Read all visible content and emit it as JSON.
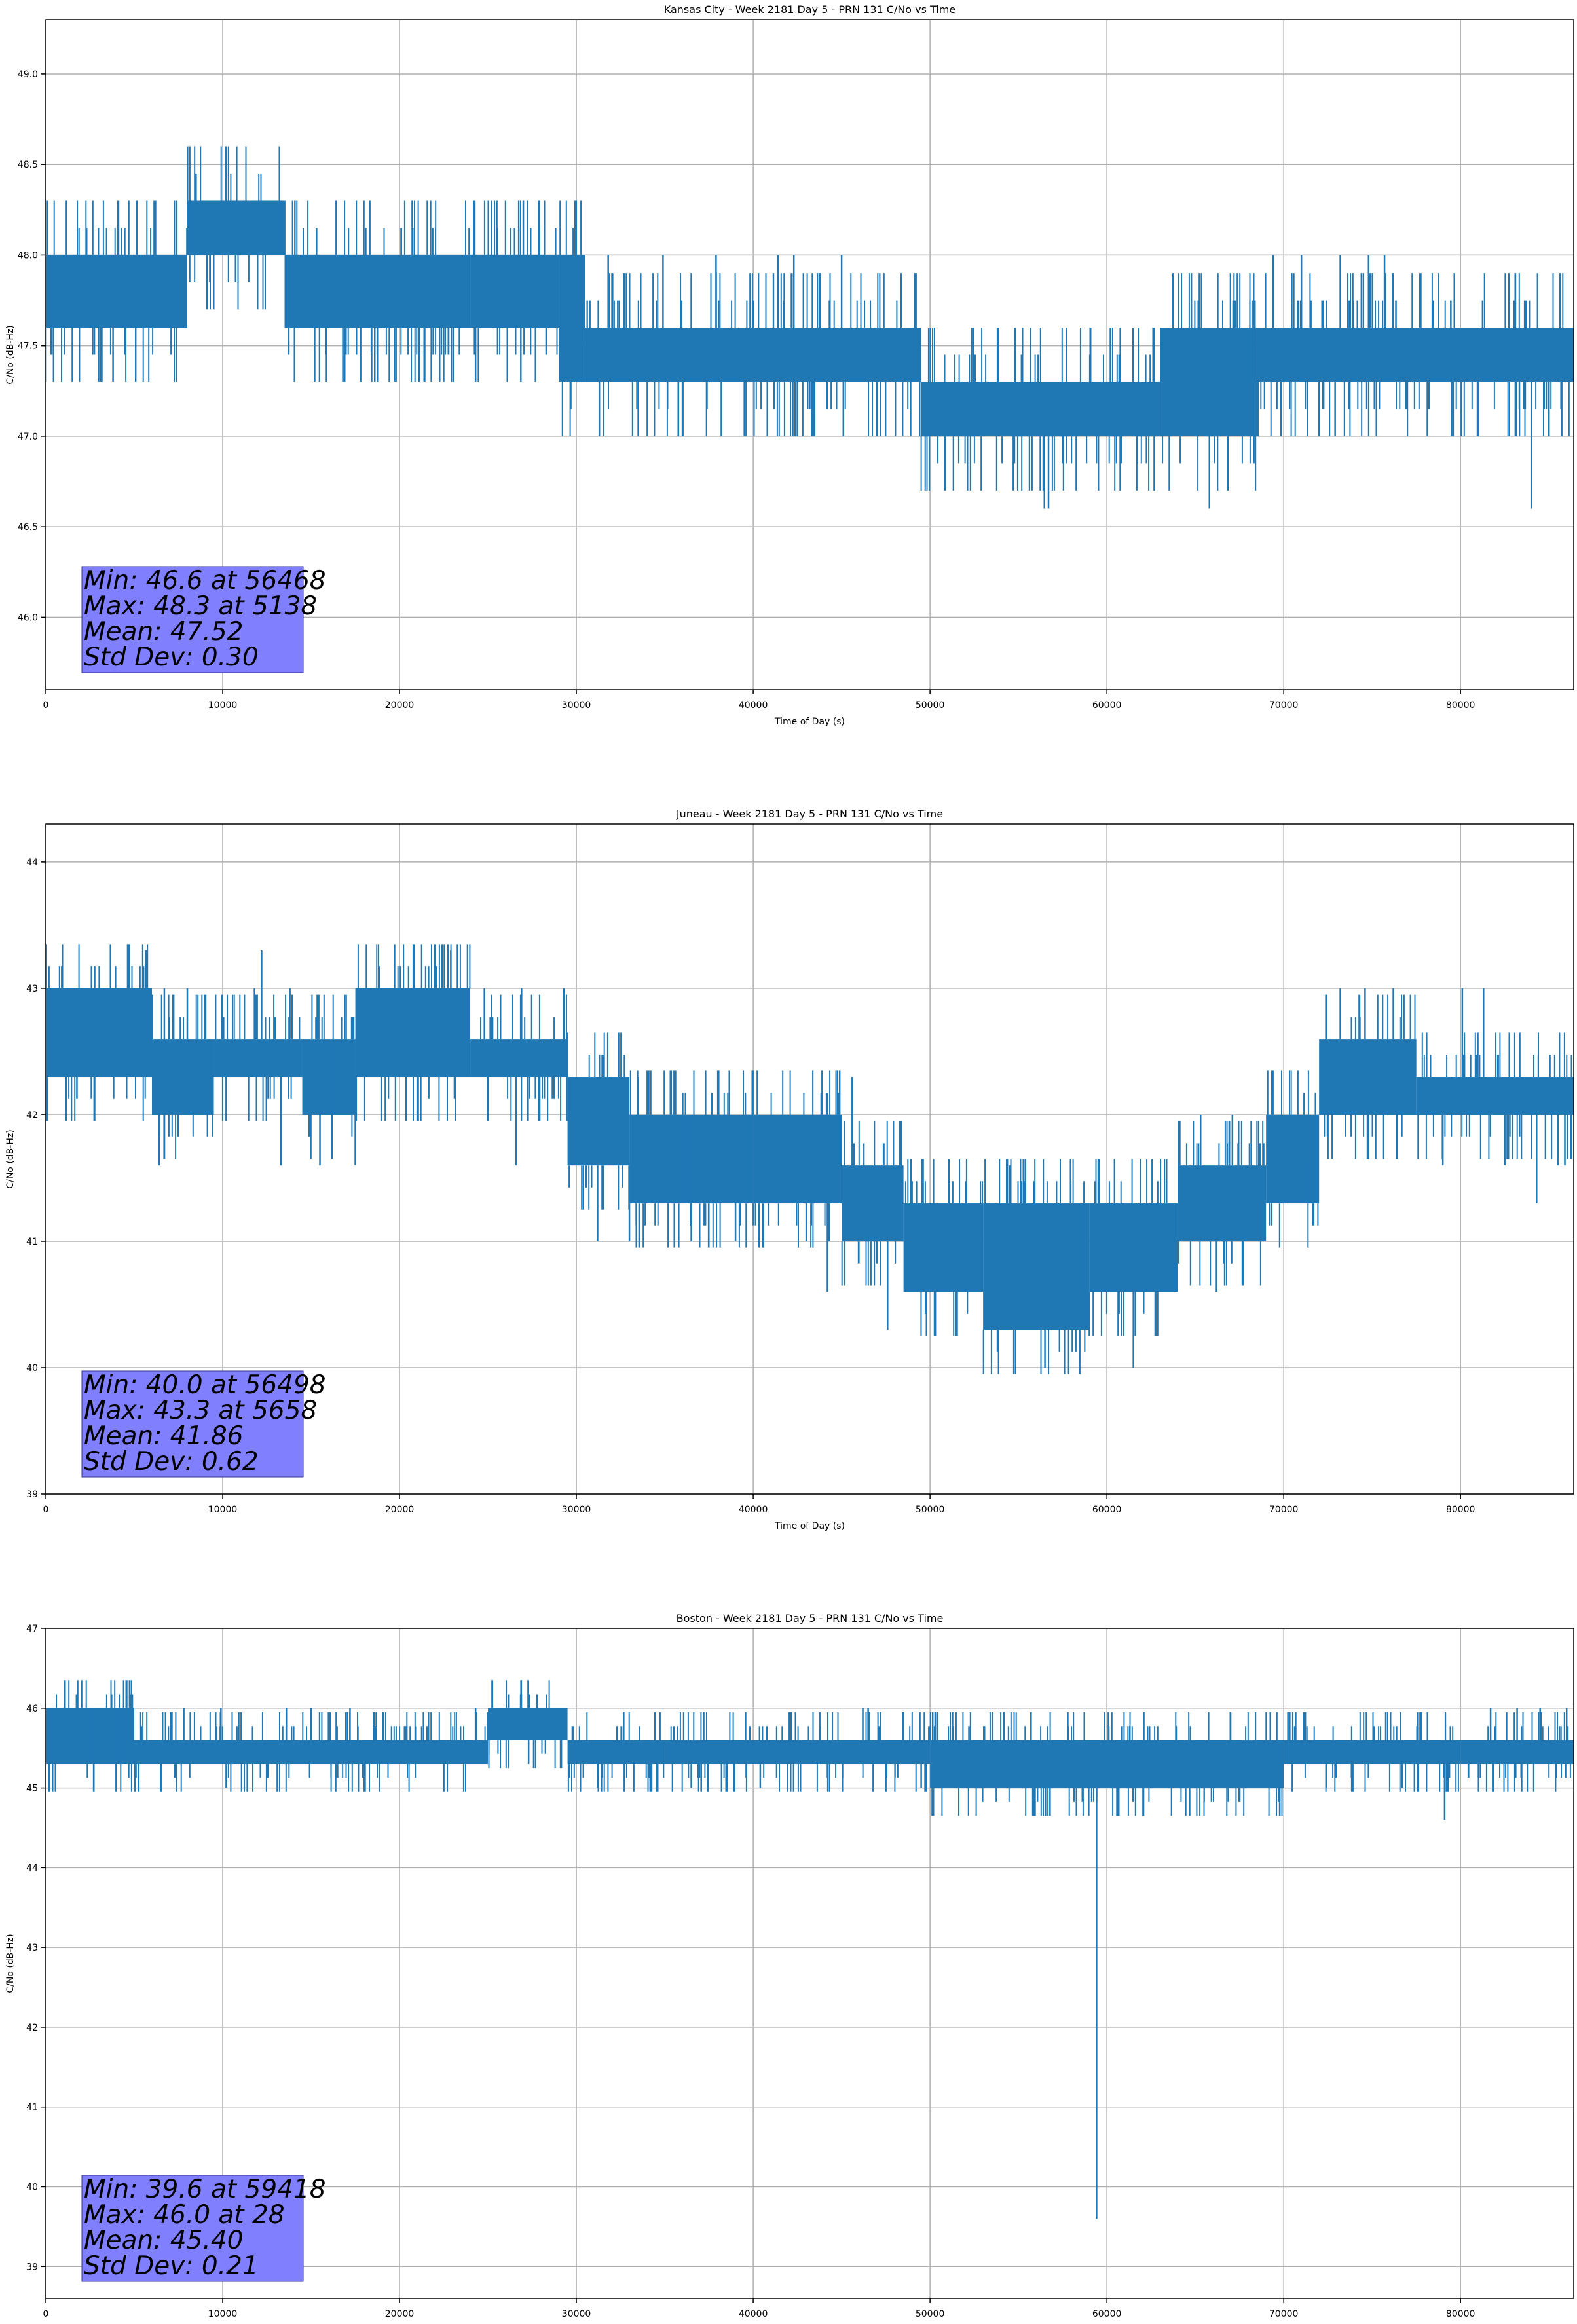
{
  "chart_data": [
    {
      "type": "line",
      "title": "Kansas City - Week 2181 Day 5 - PRN 131 C/No vs Time",
      "xlabel": "Time of Day (s)",
      "ylabel": "C/No (dB-Hz)",
      "xlim": [
        0,
        86400
      ],
      "ylim": [
        45.6,
        49.3
      ],
      "xticks": [
        0,
        10000,
        20000,
        30000,
        40000,
        50000,
        60000,
        70000,
        80000
      ],
      "yticks": [
        46.0,
        46.5,
        47.0,
        47.5,
        48.0,
        48.5,
        49.0
      ],
      "ytick_decimals": 1,
      "grid": true,
      "color": "#1f77b4",
      "envelope": [
        {
          "x0": 0,
          "x1": 8000,
          "hi": 48.0,
          "lo": 47.6
        },
        {
          "x0": 8000,
          "x1": 13500,
          "hi": 48.3,
          "lo": 48.0
        },
        {
          "x0": 13500,
          "x1": 24000,
          "hi": 48.0,
          "lo": 47.6
        },
        {
          "x0": 24000,
          "x1": 29000,
          "hi": 48.0,
          "lo": 47.6
        },
        {
          "x0": 29000,
          "x1": 30500,
          "hi": 48.0,
          "lo": 47.3
        },
        {
          "x0": 30500,
          "x1": 49500,
          "hi": 47.6,
          "lo": 47.3
        },
        {
          "x0": 49500,
          "x1": 63000,
          "hi": 47.3,
          "lo": 47.0
        },
        {
          "x0": 63000,
          "x1": 68500,
          "hi": 47.6,
          "lo": 47.0
        },
        {
          "x0": 68500,
          "x1": 86400,
          "hi": 47.6,
          "lo": 47.3
        }
      ],
      "spikes": [
        {
          "x": 5138,
          "y": 48.3
        },
        {
          "x": 6200,
          "y": 48.3
        },
        {
          "x": 7400,
          "y": 48.3
        },
        {
          "x": 8100,
          "y": 48.3
        },
        {
          "x": 13300,
          "y": 48.3
        },
        {
          "x": 24200,
          "y": 48.3
        },
        {
          "x": 25500,
          "y": 48.3
        },
        {
          "x": 27000,
          "y": 48.3
        },
        {
          "x": 27900,
          "y": 48.3
        },
        {
          "x": 1500,
          "y": 47.3
        },
        {
          "x": 3100,
          "y": 47.3
        },
        {
          "x": 3800,
          "y": 47.3
        },
        {
          "x": 15200,
          "y": 47.3
        },
        {
          "x": 16800,
          "y": 47.3
        },
        {
          "x": 17800,
          "y": 47.3
        },
        {
          "x": 18600,
          "y": 47.3
        },
        {
          "x": 19800,
          "y": 47.3
        },
        {
          "x": 21100,
          "y": 47.3
        },
        {
          "x": 21800,
          "y": 47.3
        },
        {
          "x": 24300,
          "y": 47.3
        },
        {
          "x": 26100,
          "y": 47.3
        },
        {
          "x": 31300,
          "y": 47.0
        },
        {
          "x": 33500,
          "y": 47.0
        },
        {
          "x": 36000,
          "y": 47.0
        },
        {
          "x": 38200,
          "y": 47.0
        },
        {
          "x": 42500,
          "y": 47.0
        },
        {
          "x": 45100,
          "y": 47.0
        },
        {
          "x": 47000,
          "y": 47.0
        },
        {
          "x": 31800,
          "y": 48.0
        },
        {
          "x": 34900,
          "y": 48.0
        },
        {
          "x": 37900,
          "y": 48.0
        },
        {
          "x": 41400,
          "y": 48.0
        },
        {
          "x": 42300,
          "y": 48.0
        },
        {
          "x": 45000,
          "y": 48.0
        },
        {
          "x": 56468,
          "y": 46.6
        },
        {
          "x": 56700,
          "y": 46.6
        },
        {
          "x": 65800,
          "y": 46.6
        },
        {
          "x": 84000,
          "y": 46.6
        },
        {
          "x": 69400,
          "y": 48.0
        },
        {
          "x": 71000,
          "y": 48.0
        },
        {
          "x": 73200,
          "y": 48.0
        },
        {
          "x": 74800,
          "y": 48.0
        },
        {
          "x": 75700,
          "y": 48.0
        },
        {
          "x": 72000,
          "y": 47.0
        },
        {
          "x": 79500,
          "y": 47.0
        },
        {
          "x": 81000,
          "y": 47.0
        },
        {
          "x": 83100,
          "y": 47.0
        },
        {
          "x": 85000,
          "y": 47.0
        },
        {
          "x": 60200,
          "y": 47.6
        },
        {
          "x": 54800,
          "y": 47.6
        }
      ],
      "stats": [
        "Min: 46.6 at 56468",
        "Max: 48.3 at 5138",
        "Mean: 47.52",
        "Std Dev: 0.30"
      ]
    },
    {
      "type": "line",
      "title": "Juneau - Week 2181 Day 5 - PRN 131 C/No vs Time",
      "xlabel": "Time of Day (s)",
      "ylabel": "C/No (dB-Hz)",
      "xlim": [
        0,
        86400
      ],
      "ylim": [
        39.0,
        44.3
      ],
      "xticks": [
        0,
        10000,
        20000,
        30000,
        40000,
        50000,
        60000,
        70000,
        80000
      ],
      "yticks": [
        39,
        40,
        41,
        42,
        43,
        44
      ],
      "ytick_decimals": 0,
      "grid": true,
      "color": "#1f77b4",
      "envelope": [
        {
          "x0": 0,
          "x1": 6000,
          "hi": 43.0,
          "lo": 42.3
        },
        {
          "x0": 6000,
          "x1": 9500,
          "hi": 42.6,
          "lo": 42.0
        },
        {
          "x0": 9500,
          "x1": 14500,
          "hi": 42.6,
          "lo": 42.3
        },
        {
          "x0": 14500,
          "x1": 17500,
          "hi": 42.6,
          "lo": 42.0
        },
        {
          "x0": 17500,
          "x1": 24000,
          "hi": 43.0,
          "lo": 42.3
        },
        {
          "x0": 24000,
          "x1": 29500,
          "hi": 42.6,
          "lo": 42.3
        },
        {
          "x0": 29500,
          "x1": 33000,
          "hi": 42.3,
          "lo": 41.6
        },
        {
          "x0": 33000,
          "x1": 40000,
          "hi": 42.0,
          "lo": 41.3
        },
        {
          "x0": 40000,
          "x1": 45000,
          "hi": 42.0,
          "lo": 41.3
        },
        {
          "x0": 45000,
          "x1": 48500,
          "hi": 41.6,
          "lo": 41.0
        },
        {
          "x0": 48500,
          "x1": 53000,
          "hi": 41.3,
          "lo": 40.6
        },
        {
          "x0": 53000,
          "x1": 59000,
          "hi": 41.3,
          "lo": 40.3
        },
        {
          "x0": 59000,
          "x1": 64000,
          "hi": 41.3,
          "lo": 40.6
        },
        {
          "x0": 64000,
          "x1": 69000,
          "hi": 41.6,
          "lo": 41.0
        },
        {
          "x0": 69000,
          "x1": 72000,
          "hi": 42.0,
          "lo": 41.3
        },
        {
          "x0": 72000,
          "x1": 77500,
          "hi": 42.6,
          "lo": 42.0
        },
        {
          "x0": 77500,
          "x1": 86400,
          "hi": 42.3,
          "lo": 42.0
        }
      ],
      "spikes": [
        {
          "x": 5658,
          "y": 43.3
        },
        {
          "x": 12200,
          "y": 43.3
        },
        {
          "x": 22900,
          "y": 43.3
        },
        {
          "x": 6400,
          "y": 41.6
        },
        {
          "x": 13300,
          "y": 41.6
        },
        {
          "x": 15500,
          "y": 41.6
        },
        {
          "x": 17500,
          "y": 41.6
        },
        {
          "x": 26600,
          "y": 41.6
        },
        {
          "x": 6700,
          "y": 43.0
        },
        {
          "x": 8000,
          "y": 43.0
        },
        {
          "x": 11800,
          "y": 43.0
        },
        {
          "x": 13800,
          "y": 43.0
        },
        {
          "x": 16200,
          "y": 42.6
        },
        {
          "x": 24800,
          "y": 43.0
        },
        {
          "x": 26900,
          "y": 43.0
        },
        {
          "x": 29300,
          "y": 43.0
        },
        {
          "x": 31200,
          "y": 41.0
        },
        {
          "x": 33000,
          "y": 41.0
        },
        {
          "x": 36500,
          "y": 41.0
        },
        {
          "x": 39000,
          "y": 41.0
        },
        {
          "x": 33500,
          "y": 42.3
        },
        {
          "x": 36200,
          "y": 42.0
        },
        {
          "x": 43000,
          "y": 41.0
        },
        {
          "x": 44300,
          "y": 41.0
        },
        {
          "x": 45600,
          "y": 42.3
        },
        {
          "x": 44200,
          "y": 40.6
        },
        {
          "x": 47600,
          "y": 40.3
        },
        {
          "x": 48900,
          "y": 40.6
        },
        {
          "x": 51500,
          "y": 40.3
        },
        {
          "x": 54500,
          "y": 41.6
        },
        {
          "x": 56498,
          "y": 40.0
        },
        {
          "x": 61500,
          "y": 40.0
        },
        {
          "x": 58500,
          "y": 40.3
        },
        {
          "x": 63000,
          "y": 40.6
        },
        {
          "x": 66200,
          "y": 40.6
        },
        {
          "x": 65300,
          "y": 42.0
        },
        {
          "x": 67100,
          "y": 42.0
        },
        {
          "x": 71400,
          "y": 41.6
        },
        {
          "x": 73200,
          "y": 43.0
        },
        {
          "x": 74600,
          "y": 43.0
        },
        {
          "x": 76200,
          "y": 43.0
        },
        {
          "x": 80100,
          "y": 43.0
        },
        {
          "x": 81300,
          "y": 43.0
        },
        {
          "x": 84300,
          "y": 41.3
        },
        {
          "x": 85500,
          "y": 41.6
        },
        {
          "x": 79000,
          "y": 41.6
        },
        {
          "x": 82500,
          "y": 41.6
        },
        {
          "x": 85900,
          "y": 41.6
        }
      ],
      "stats": [
        "Min: 40.0 at 56498",
        "Max: 43.3 at 5658",
        "Mean: 41.86",
        "Std Dev: 0.62"
      ]
    },
    {
      "type": "line",
      "title": "Boston - Week 2181 Day 5 - PRN 131 C/No vs Time",
      "xlabel": "Time of Day (s)",
      "ylabel": "C/No (dB-Hz)",
      "xlim": [
        0,
        86400
      ],
      "ylim": [
        38.6,
        47.0
      ],
      "xticks": [
        0,
        10000,
        20000,
        30000,
        40000,
        50000,
        60000,
        70000,
        80000
      ],
      "yticks": [
        39,
        40,
        41,
        42,
        43,
        44,
        45,
        46,
        47
      ],
      "ytick_decimals": 0,
      "grid": true,
      "color": "#1f77b4",
      "envelope": [
        {
          "x0": 0,
          "x1": 5000,
          "hi": 46.0,
          "lo": 45.3
        },
        {
          "x0": 5000,
          "x1": 25000,
          "hi": 45.6,
          "lo": 45.3
        },
        {
          "x0": 25000,
          "x1": 29500,
          "hi": 46.0,
          "lo": 45.6
        },
        {
          "x0": 29500,
          "x1": 35000,
          "hi": 45.6,
          "lo": 45.3
        },
        {
          "x0": 35000,
          "x1": 50000,
          "hi": 45.6,
          "lo": 45.3
        },
        {
          "x0": 50000,
          "x1": 70000,
          "hi": 45.6,
          "lo": 45.0
        },
        {
          "x0": 70000,
          "x1": 80000,
          "hi": 45.6,
          "lo": 45.3
        },
        {
          "x0": 80000,
          "x1": 86400,
          "hi": 45.6,
          "lo": 45.3
        }
      ],
      "spikes": [
        {
          "x": 28,
          "y": 46.0
        },
        {
          "x": 2500,
          "y": 46.0
        },
        {
          "x": 4200,
          "y": 46.0
        },
        {
          "x": 7800,
          "y": 46.0
        },
        {
          "x": 9900,
          "y": 46.0
        },
        {
          "x": 13600,
          "y": 46.0
        },
        {
          "x": 15000,
          "y": 46.0
        },
        {
          "x": 17200,
          "y": 46.0
        },
        {
          "x": 24300,
          "y": 46.0
        },
        {
          "x": 46200,
          "y": 46.0
        },
        {
          "x": 46500,
          "y": 46.0
        },
        {
          "x": 81700,
          "y": 46.0
        },
        {
          "x": 83200,
          "y": 46.0
        },
        {
          "x": 84500,
          "y": 46.0
        },
        {
          "x": 86000,
          "y": 46.0
        },
        {
          "x": 10200,
          "y": 45.0
        },
        {
          "x": 31200,
          "y": 45.0
        },
        {
          "x": 36500,
          "y": 45.0
        },
        {
          "x": 40400,
          "y": 45.0
        },
        {
          "x": 49500,
          "y": 45.0
        },
        {
          "x": 59418,
          "y": 39.6
        },
        {
          "x": 79100,
          "y": 44.6
        },
        {
          "x": 72400,
          "y": 45.0
        },
        {
          "x": 76700,
          "y": 45.0
        },
        {
          "x": 5600,
          "y": 45.3
        },
        {
          "x": 19200,
          "y": 45.3
        },
        {
          "x": 27300,
          "y": 45.3
        }
      ],
      "stats": [
        "Min: 39.6 at 59418",
        "Max: 46.0 at 28",
        "Mean: 45.40",
        "Std Dev: 0.21"
      ]
    }
  ]
}
